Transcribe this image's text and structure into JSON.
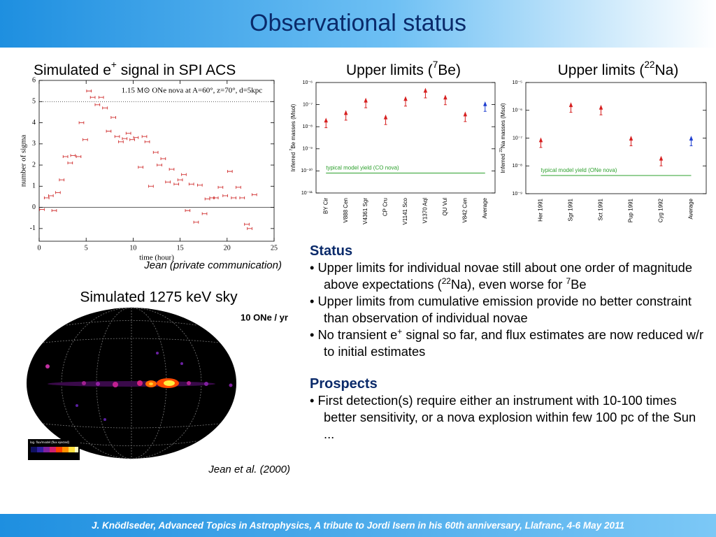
{
  "header": {
    "title": "Observational status"
  },
  "footer": {
    "text": "J. Knödlseder, Advanced Topics in Astrophysics, A tribute to Jordi Isern in his 60th anniversary, Llafranc, 4-6 May 2011"
  },
  "chart_data": [
    {
      "type": "scatter",
      "title": [
        {
          "text": "Simulated e"
        },
        {
          "sup": "+"
        },
        {
          "text": " signal in SPI ACS"
        }
      ],
      "annotation": "1.15 M⊙ ONe nova at A=60°, z=70°, d=5kpc",
      "xlabel": "time (hour)",
      "ylabel": "number of sigma",
      "caption": "Jean (private communication)",
      "color": "#d03030",
      "x": [
        0.3,
        0.8,
        1.25,
        1.6,
        2.0,
        2.4,
        2.8,
        3.3,
        3.6,
        4.2,
        4.5,
        4.9,
        5.3,
        5.7,
        6.2,
        6.6,
        7.0,
        7.4,
        7.9,
        8.3,
        8.7,
        9.1,
        9.5,
        9.9,
        10.3,
        10.8,
        11.2,
        11.5,
        11.9,
        12.4,
        12.8,
        13.2,
        13.7,
        14.1,
        14.6,
        15.0,
        15.4,
        15.8,
        16.2,
        16.7,
        17.1,
        17.6,
        17.9,
        18.4,
        18.8,
        19.3,
        19.8,
        20.3,
        20.7,
        21.2,
        21.6,
        22.1,
        22.4,
        22.9
      ],
      "y": [
        -0.1,
        0.45,
        0.55,
        -0.15,
        0.7,
        1.3,
        2.4,
        2.1,
        2.45,
        2.4,
        4.0,
        3.2,
        5.5,
        5.2,
        4.85,
        5.2,
        4.7,
        3.6,
        4.25,
        3.35,
        3.1,
        3.25,
        3.5,
        3.2,
        3.3,
        1.9,
        3.35,
        3.1,
        1.0,
        2.6,
        2.0,
        2.3,
        1.2,
        1.8,
        1.1,
        1.3,
        1.55,
        -0.15,
        1.1,
        -0.7,
        1.05,
        -0.3,
        0.4,
        0.45,
        0.45,
        0.95,
        0.55,
        1.7,
        0.45,
        0.95,
        0.45,
        -0.8,
        -1.0,
        0.6
      ],
      "xerr": 0.25,
      "hlines": [
        5,
        0
      ],
      "xlim": [
        0,
        25
      ],
      "xticks": [
        0,
        5,
        10,
        15,
        20,
        25
      ],
      "ylim": [
        -1.6,
        6
      ],
      "yticks": [
        -1,
        0,
        1,
        2,
        3,
        4,
        5,
        6
      ]
    },
    {
      "type": "scatter",
      "marker": "upper-limit",
      "ylog": true,
      "title": [
        {
          "text": "Upper limits ("
        },
        {
          "sup": "7"
        },
        {
          "text": "Be)"
        }
      ],
      "ylabel": [
        {
          "text": "Inferred "
        },
        {
          "sup": "7"
        },
        {
          "text": "Be masses (Msol)"
        }
      ],
      "categories": [
        "BY Cir",
        "V888 Cen",
        "V4361 Sgr",
        "CP Cru",
        "V1141 Sco",
        "V1370 Aql",
        "QU Vul",
        "V842 Cen",
        "Average"
      ],
      "values": [
        2e-08,
        4.4e-08,
        1.6e-07,
        2.8e-08,
        1.9e-07,
        4.5e-07,
        2.2e-07,
        3.8e-08,
        1.1e-07
      ],
      "colors": [
        "#d62020",
        "#d62020",
        "#d62020",
        "#d62020",
        "#d62020",
        "#d62020",
        "#d62020",
        "#d62020",
        "#1f3fd0"
      ],
      "model_line": {
        "value": 8e-11,
        "label": "typical model yield (CO nova)",
        "color": "#2ca02c"
      },
      "ylim": [
        1e-11,
        1e-06
      ],
      "yticks": [
        {
          "value": 1e-11,
          "label": "10⁻¹¹"
        },
        {
          "value": 1e-10,
          "label": "10⁻¹⁰"
        },
        {
          "value": 1e-09,
          "label": "10⁻⁹"
        },
        {
          "value": 1e-08,
          "label": "10⁻⁸"
        },
        {
          "value": 1e-07,
          "label": "10⁻⁷"
        },
        {
          "value": 1e-06,
          "label": "10⁻⁶"
        }
      ]
    },
    {
      "type": "scatter",
      "marker": "upper-limit",
      "ylog": true,
      "title": [
        {
          "text": "Upper limits ("
        },
        {
          "sup": "22"
        },
        {
          "text": "Na)"
        }
      ],
      "ylabel": [
        {
          "text": "Inferred "
        },
        {
          "sup": "22"
        },
        {
          "text": "Na masses (Msol)"
        }
      ],
      "categories": [
        "Her 1991",
        "Sgr 1991",
        "Sct 1991",
        "Pup 1991",
        "Cyg 1992",
        "Average"
      ],
      "values": [
        8.7e-08,
        1.6e-06,
        1.3e-06,
        1e-07,
        1.9e-08,
        1e-07
      ],
      "colors": [
        "#d62020",
        "#d62020",
        "#d62020",
        "#d62020",
        "#d62020",
        "#1f3fd0"
      ],
      "model_line": {
        "value": 4.5e-09,
        "label": "typical model yield (ONe nova)",
        "color": "#2ca02c"
      },
      "ylim": [
        1e-09,
        1e-05
      ],
      "yticks": [
        {
          "value": 1e-09,
          "label": "10⁻⁹"
        },
        {
          "value": 1e-08,
          "label": "10⁻⁸"
        },
        {
          "value": 1e-07,
          "label": "10⁻⁷"
        },
        {
          "value": 1e-06,
          "label": "10⁻⁶"
        },
        {
          "value": 1e-05,
          "label": "10⁻⁵"
        }
      ]
    }
  ],
  "sky": {
    "title": "Simulated 1275 keV sky",
    "label": "10 ONe / yr",
    "colorbar": "log. flux/model (flux ejected)",
    "caption": "Jean et al. (2000)"
  },
  "status": {
    "heading": "Status",
    "bullets": [
      [
        {
          "text": "Upper limits for individual novae still about one order of magnitude above expectations ("
        },
        {
          "sup": "22"
        },
        {
          "text": "Na), even worse for "
        },
        {
          "sup": "7"
        },
        {
          "text": "Be"
        }
      ],
      [
        {
          "text": "Upper limits from cumulative emission provide no better constraint than observation of individual novae"
        }
      ],
      [
        {
          "text": "No transient e"
        },
        {
          "sup": "+"
        },
        {
          "text": " signal so far, and flux estimates are now reduced w/r to initial estimates"
        }
      ]
    ]
  },
  "prospects": {
    "heading": "Prospects",
    "bullets": [
      [
        {
          "text": "First detection(s) require either an instrument with 10-100 times better sensitivity, or a nova explosion within few 100 pc of the Sun ..."
        }
      ]
    ]
  }
}
